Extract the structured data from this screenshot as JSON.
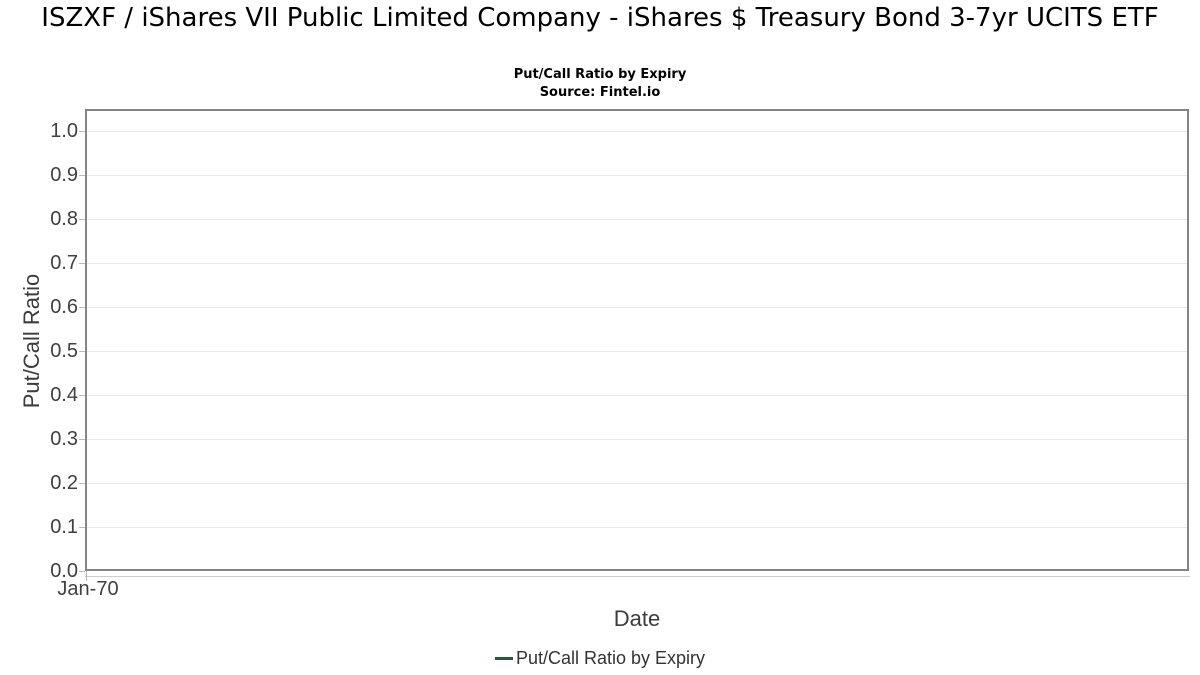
{
  "chart_data": {
    "type": "line",
    "title": "ISZXF / iShares VII Public Limited Company - iShares $ Treasury Bond 3-7yr UCITS ETF",
    "subtitle": "Put/Call Ratio by Expiry",
    "source": "Source: Fintel.io",
    "xlabel": "Date",
    "ylabel": "Put/Call Ratio",
    "ylim": [
      0,
      1.05
    ],
    "y_ticks": [
      "0.0",
      "0.1",
      "0.2",
      "0.3",
      "0.4",
      "0.5",
      "0.6",
      "0.7",
      "0.8",
      "0.9",
      "1.0"
    ],
    "x_ticks": [
      "Jan-70"
    ],
    "grid": "horizontal",
    "legend": {
      "position": "bottom",
      "entries": [
        {
          "label": "Put/Call Ratio by Expiry",
          "color": "#265c35"
        }
      ]
    },
    "series": [
      {
        "name": "Put/Call Ratio by Expiry",
        "color": "#265c35",
        "x": [],
        "y": []
      }
    ]
  },
  "colors": {
    "background": "#ffffff",
    "title_text": "#000000",
    "plot_border": "#848484",
    "gridline": "#e6e6e6",
    "axis_line": "#cccccc",
    "tick_mark": "#bbbbbb",
    "tick_label": "#404040",
    "axis_title": "#3c3c3c",
    "legend_text": "#333333",
    "series_green": "#265c35"
  }
}
